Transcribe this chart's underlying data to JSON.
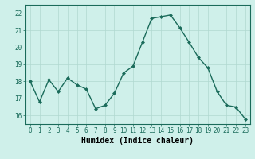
{
  "x": [
    0,
    1,
    2,
    3,
    4,
    5,
    6,
    7,
    8,
    9,
    10,
    11,
    12,
    13,
    14,
    15,
    16,
    17,
    18,
    19,
    20,
    21,
    22,
    23
  ],
  "y": [
    18.0,
    16.8,
    18.1,
    17.4,
    18.2,
    17.8,
    17.55,
    16.4,
    16.6,
    17.3,
    18.5,
    18.9,
    20.3,
    21.7,
    21.8,
    21.9,
    21.15,
    20.3,
    19.4,
    18.8,
    17.4,
    16.6,
    16.5,
    15.8
  ],
  "line_color": "#1a6b5a",
  "marker": "D",
  "marker_size": 2.0,
  "bg_color": "#cff0ea",
  "grid_color": "#b0d8d0",
  "xlabel": "Humidex (Indice chaleur)",
  "ylim": [
    15.5,
    22.5
  ],
  "xlim": [
    -0.5,
    23.5
  ],
  "yticks": [
    16,
    17,
    18,
    19,
    20,
    21,
    22
  ],
  "xticks": [
    0,
    1,
    2,
    3,
    4,
    5,
    6,
    7,
    8,
    9,
    10,
    11,
    12,
    13,
    14,
    15,
    16,
    17,
    18,
    19,
    20,
    21,
    22,
    23
  ],
  "tick_fontsize": 5.5,
  "xlabel_fontsize": 7.0,
  "line_width": 1.0,
  "tick_color": "#1a6b5a",
  "spine_color": "#1a6b5a"
}
